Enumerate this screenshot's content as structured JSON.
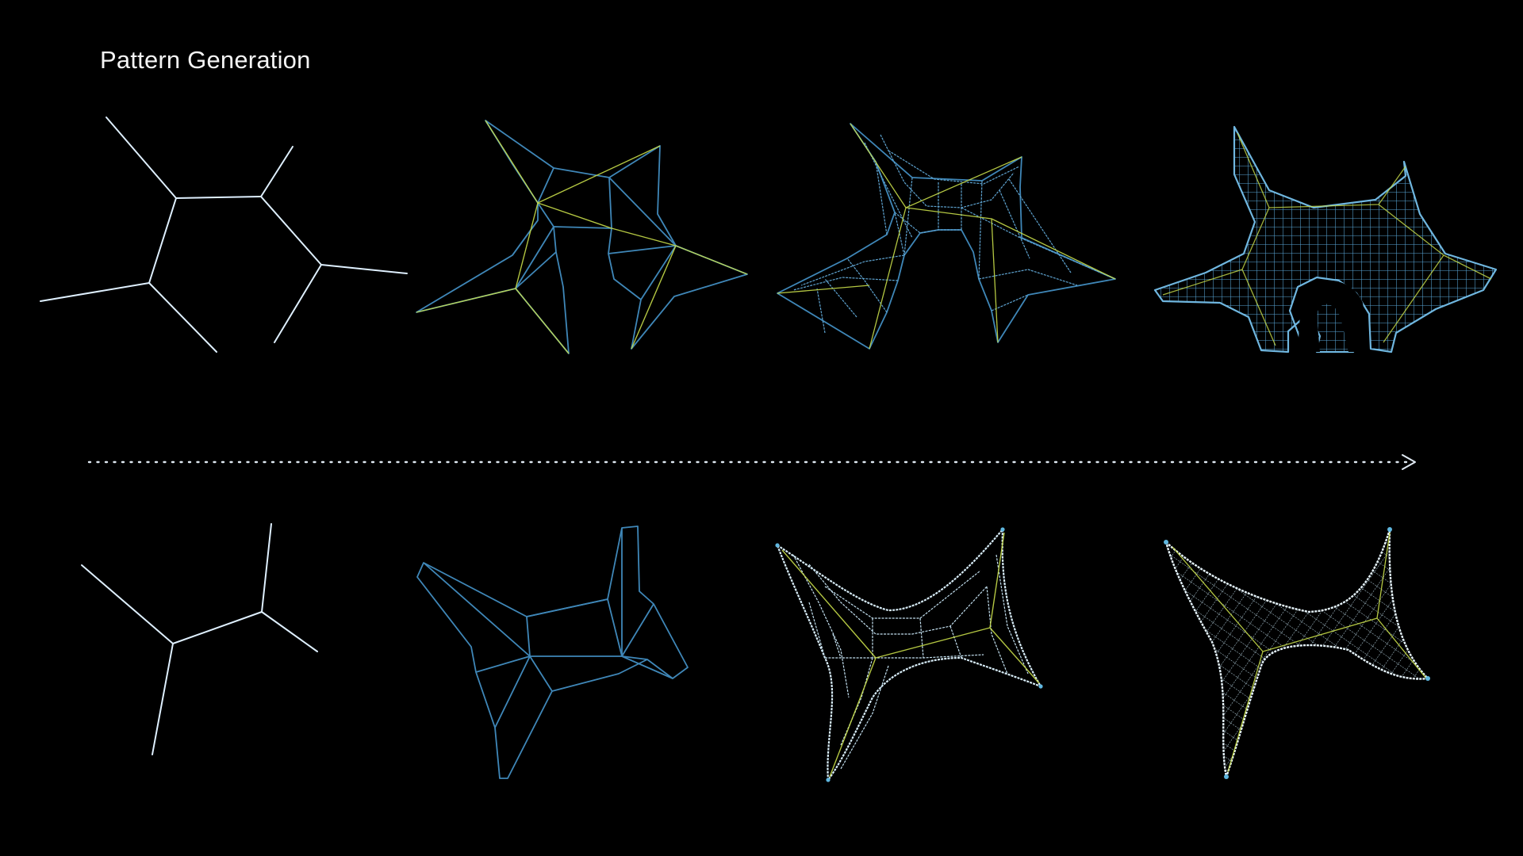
{
  "title": "Pattern Generation",
  "colors": {
    "background": "#000000",
    "title": "#f4f4f4",
    "skeleton": "#dff0ff",
    "mesh": "#3f87b8",
    "mesh_dense": "#6fb6df",
    "spine": "#c8dd4a",
    "arrow": "#dfe9f2"
  },
  "rows": [
    {
      "name": "top-row",
      "stages": [
        "skeleton",
        "coarse-mesh",
        "refined-mesh",
        "dense-mesh"
      ]
    },
    {
      "name": "bottom-row",
      "stages": [
        "skeleton",
        "coarse-mesh",
        "refined-mesh",
        "dense-mesh"
      ]
    }
  ],
  "arrow": {
    "style": "dotted",
    "direction": "right"
  }
}
